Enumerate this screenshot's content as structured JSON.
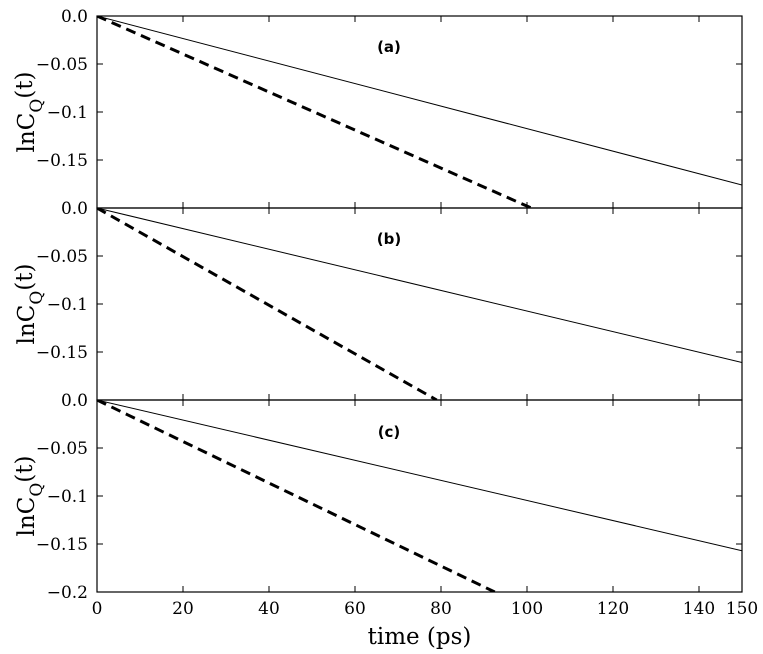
{
  "chart_data": {
    "type": "line",
    "layout": "three vertically stacked panels sharing the x axis",
    "xlabel": "time (ps)",
    "xlim": [
      0,
      150
    ],
    "xticks": [
      0,
      20,
      40,
      60,
      80,
      100,
      120,
      140,
      150
    ],
    "xtick_labels": [
      "0",
      "20",
      "40",
      "60",
      "80",
      "100",
      "120",
      "140",
      "150"
    ],
    "grid": false,
    "legend": "none",
    "panels": [
      {
        "label": "(a)",
        "ylabel_main": "lnC",
        "ylabel_sub": "Q",
        "ylabel_tail": "(t)",
        "ylim": [
          -0.2,
          0.0
        ],
        "yticks": [
          0.0,
          -0.05,
          -0.1,
          -0.15
        ],
        "ytick_labels": [
          "0.0",
          "−0.05",
          "−0.1",
          "−0.15"
        ],
        "series": [
          {
            "style": "solid",
            "x": [
              0,
              150
            ],
            "y": [
              0.0,
              -0.176
            ]
          },
          {
            "style": "dashed",
            "x": [
              0,
              101
            ],
            "y": [
              0.0,
              -0.2
            ]
          }
        ]
      },
      {
        "label": "(b)",
        "ylabel_main": "lnC",
        "ylabel_sub": "Q",
        "ylabel_tail": "(t)",
        "ylim": [
          -0.2,
          0.0
        ],
        "yticks": [
          0.0,
          -0.05,
          -0.1,
          -0.15
        ],
        "ytick_labels": [
          "0.0",
          "−0.05",
          "−0.1",
          "−0.15"
        ],
        "series": [
          {
            "style": "solid",
            "x": [
              0,
              150
            ],
            "y": [
              0.0,
              -0.161
            ]
          },
          {
            "style": "dashed",
            "x": [
              0,
              79
            ],
            "y": [
              0.0,
              -0.2
            ]
          }
        ]
      },
      {
        "label": "(c)",
        "ylabel_main": "lnC",
        "ylabel_sub": "Q",
        "ylabel_tail": "(t)",
        "ylim": [
          -0.2,
          0.0
        ],
        "yticks": [
          0.0,
          -0.05,
          -0.1,
          -0.15,
          -0.2
        ],
        "ytick_labels": [
          "0.0",
          "−0.05",
          "−0.1",
          "−0.15",
          "−0.2"
        ],
        "series": [
          {
            "style": "solid",
            "x": [
              0,
              150
            ],
            "y": [
              0.0,
              -0.157
            ]
          },
          {
            "style": "dashed",
            "x": [
              0,
              92.5
            ],
            "y": [
              0.0,
              -0.2
            ]
          }
        ]
      }
    ]
  }
}
